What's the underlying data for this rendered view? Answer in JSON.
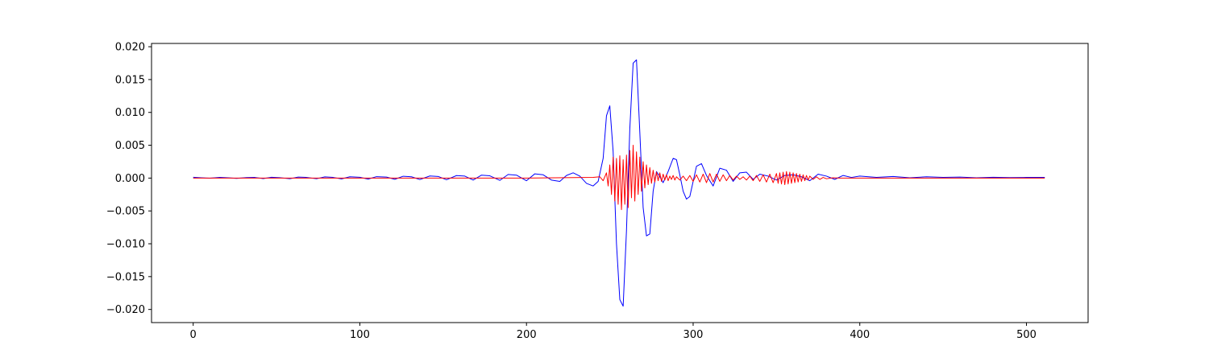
{
  "chart_data": {
    "type": "line",
    "title": "",
    "xlabel": "",
    "ylabel": "",
    "xlim": [
      -25,
      537
    ],
    "ylim": [
      -0.022,
      0.0205
    ],
    "x_ticks": [
      0,
      100,
      200,
      300,
      400,
      500
    ],
    "x_tick_labels": [
      "0",
      "100",
      "200",
      "300",
      "400",
      "500"
    ],
    "y_ticks": [
      0.02,
      0.015,
      0.01,
      0.005,
      0.0,
      -0.005,
      -0.01,
      -0.015,
      -0.02
    ],
    "y_tick_labels": [
      "0.020",
      "0.015",
      "0.010",
      "0.005",
      "0.000",
      "−0.005",
      "−0.010",
      "−0.015",
      "−0.020"
    ],
    "grid": false,
    "legend": "none",
    "series": [
      {
        "color": "#0000ff",
        "x": [
          0,
          5,
          10,
          16,
          21,
          26,
          32,
          37,
          42,
          47,
          52,
          58,
          63,
          68,
          74,
          79,
          84,
          89,
          94,
          100,
          105,
          110,
          116,
          121,
          126,
          131,
          136,
          142,
          147,
          152,
          158,
          163,
          168,
          173,
          178,
          184,
          189,
          194,
          200,
          205,
          210,
          215,
          220,
          224,
          228,
          232,
          236,
          240,
          243,
          246,
          248,
          250,
          252,
          254,
          256,
          258,
          260,
          262,
          264,
          266,
          268,
          270,
          272,
          274,
          276,
          278,
          280,
          282,
          285,
          288,
          290,
          292,
          294,
          296,
          298,
          300,
          302,
          305,
          308,
          312,
          316,
          320,
          324,
          328,
          332,
          336,
          340,
          345,
          350,
          355,
          360,
          365,
          370,
          375,
          380,
          385,
          390,
          395,
          400,
          410,
          420,
          430,
          440,
          450,
          460,
          470,
          480,
          490,
          500,
          511
        ],
        "y": [
          0.00012,
          5e-05,
          -2e-05,
          0.0001,
          5e-05,
          -5e-05,
          8e-05,
          0.0001,
          -8e-05,
          0.00012,
          6e-05,
          -0.0001,
          0.00015,
          0.0001,
          -0.0001,
          0.00018,
          0.0001,
          -0.00012,
          0.0002,
          0.00012,
          -0.00015,
          0.00022,
          0.00015,
          -0.00018,
          0.00028,
          0.0002,
          -0.00022,
          0.00032,
          0.00025,
          -0.00025,
          0.00038,
          0.0003,
          -0.0003,
          0.00045,
          0.00035,
          -0.00035,
          0.00055,
          0.00045,
          -0.0004,
          0.00065,
          0.0005,
          -0.0003,
          -0.0005,
          0.0004,
          0.0008,
          0.0003,
          -0.0008,
          -0.0012,
          -0.0005,
          0.003,
          0.0095,
          0.011,
          0.004,
          -0.01,
          -0.0185,
          -0.0195,
          -0.008,
          0.0075,
          0.0175,
          0.018,
          0.007,
          -0.0045,
          -0.0088,
          -0.0085,
          -0.002,
          0.001,
          0.0002,
          -0.0007,
          0.001,
          0.003,
          0.0028,
          0.0005,
          -0.002,
          -0.0032,
          -0.0028,
          -0.0005,
          0.0018,
          0.0022,
          0.0004,
          -0.0012,
          0.0015,
          0.0012,
          -0.0005,
          0.0008,
          0.0009,
          -0.0002,
          0.0006,
          0.0003,
          -0.0003,
          0.0004,
          0.0005,
          0.0002,
          -0.0004,
          0.0006,
          0.0003,
          -0.0002,
          0.0004,
          0.0001,
          0.0003,
          0.0001,
          0.00025,
          5e-05,
          0.0002,
          0.0001,
          0.00015,
          5e-05,
          0.00012,
          8e-05,
          0.0001,
          0.0001
        ]
      },
      {
        "color": "#ff0000",
        "x": [
          0,
          50,
          100,
          150,
          200,
          240,
          244,
          246,
          248,
          249,
          250,
          251,
          252,
          253,
          254,
          255,
          256,
          257,
          258,
          259,
          260,
          261,
          262,
          263,
          264,
          265,
          266,
          267,
          268,
          269,
          270,
          271,
          272,
          273,
          274,
          275,
          276,
          277,
          278,
          279,
          280,
          281,
          282,
          283,
          284,
          285,
          286,
          287,
          288,
          289,
          290,
          292,
          294,
          296,
          298,
          300,
          302,
          304,
          306,
          308,
          310,
          312,
          314,
          316,
          318,
          320,
          322,
          324,
          326,
          328,
          330,
          332,
          334,
          336,
          338,
          340,
          342,
          344,
          346,
          348,
          350,
          351,
          352,
          353,
          354,
          355,
          356,
          357,
          358,
          359,
          360,
          361,
          362,
          363,
          364,
          365,
          366,
          367,
          368,
          369,
          370,
          372,
          374,
          376,
          378,
          380,
          384,
          388,
          392,
          396,
          400,
          450,
          511
        ],
        "y": [
          0.0,
          0.0,
          0.0,
          0.0,
          0.0,
          0.0001,
          0.0002,
          -0.0004,
          0.0008,
          -0.0012,
          0.002,
          -0.0025,
          0.0032,
          -0.0035,
          0.003,
          -0.004,
          0.0034,
          -0.0048,
          0.0028,
          -0.004,
          0.0035,
          -0.0045,
          0.0042,
          -0.003,
          0.005,
          -0.0035,
          0.004,
          -0.0025,
          0.0032,
          -0.002,
          0.0025,
          -0.0015,
          0.002,
          -0.001,
          0.0016,
          -0.0008,
          0.0012,
          -0.0006,
          0.0009,
          -0.0004,
          0.0008,
          -0.0005,
          0.0006,
          -0.0003,
          0.0005,
          -0.0004,
          0.0003,
          -0.0002,
          0.0004,
          -0.0003,
          0.0002,
          -0.0003,
          0.0003,
          -0.0004,
          0.0004,
          -0.0005,
          0.0005,
          -0.0006,
          0.0006,
          -0.0007,
          0.0007,
          -0.0006,
          0.0006,
          -0.0005,
          0.0005,
          -0.0004,
          0.0004,
          -0.0003,
          0.0003,
          -0.0002,
          0.0002,
          -0.0003,
          0.0003,
          -0.0004,
          0.0004,
          -0.0005,
          0.0005,
          -0.0006,
          0.0006,
          -0.0007,
          0.0007,
          -0.0008,
          0.0008,
          -0.0009,
          0.0009,
          -0.001,
          0.001,
          -0.0009,
          0.0009,
          -0.0008,
          0.0008,
          -0.0007,
          0.0007,
          -0.0006,
          0.0006,
          -0.0005,
          0.0005,
          -0.0004,
          0.0004,
          -0.0003,
          0.0003,
          -0.0002,
          0.0002,
          -0.0002,
          0.0001,
          -0.0001,
          5e-05,
          0.0,
          0.0,
          0.0,
          0.0,
          0.0,
          0.0
        ]
      }
    ]
  }
}
